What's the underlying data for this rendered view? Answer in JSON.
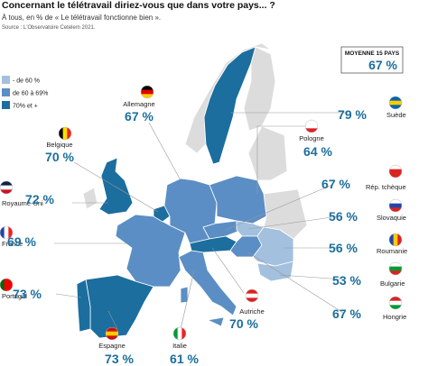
{
  "header": {
    "title": "Concernant le télétravail diriez-vous que dans votre pays... ?",
    "subtitle": "À tous, en % de « Le télétravail fonctionne bien ».",
    "source": "Source : L'Observatoire Cetelem 2021."
  },
  "legend": [
    {
      "label": "- de 60 %",
      "color": "#a3c0de"
    },
    {
      "label": "de 60 à 69%",
      "color": "#5b8ec4"
    },
    {
      "label": "70% et +",
      "color": "#1b6e9e"
    }
  ],
  "average": {
    "label": "MOYENNE 15 PAYS",
    "value": "67 %"
  },
  "countries": [
    {
      "name": "Allemagne",
      "value": "67 %"
    },
    {
      "name": "Belgique",
      "value": "70 %"
    },
    {
      "name": "Royaume-Uni",
      "value": "72 %"
    },
    {
      "name": "France",
      "value": "69 %"
    },
    {
      "name": "Portugal",
      "value": "73 %"
    },
    {
      "name": "Espagne",
      "value": "73 %"
    },
    {
      "name": "Italie",
      "value": "61 %"
    },
    {
      "name": "Autriche",
      "value": "70 %"
    },
    {
      "name": "Suède",
      "value": "79 %"
    },
    {
      "name": "Pologne",
      "value": "64 %"
    },
    {
      "name": "Rép. tchèque",
      "value": "67 %"
    },
    {
      "name": "Slovaquie",
      "value": "56 %"
    },
    {
      "name": "Roumanie",
      "value": "56 %"
    },
    {
      "name": "Bulgarie",
      "value": "53 %"
    },
    {
      "name": "Hongrie",
      "value": "67 %"
    }
  ]
}
